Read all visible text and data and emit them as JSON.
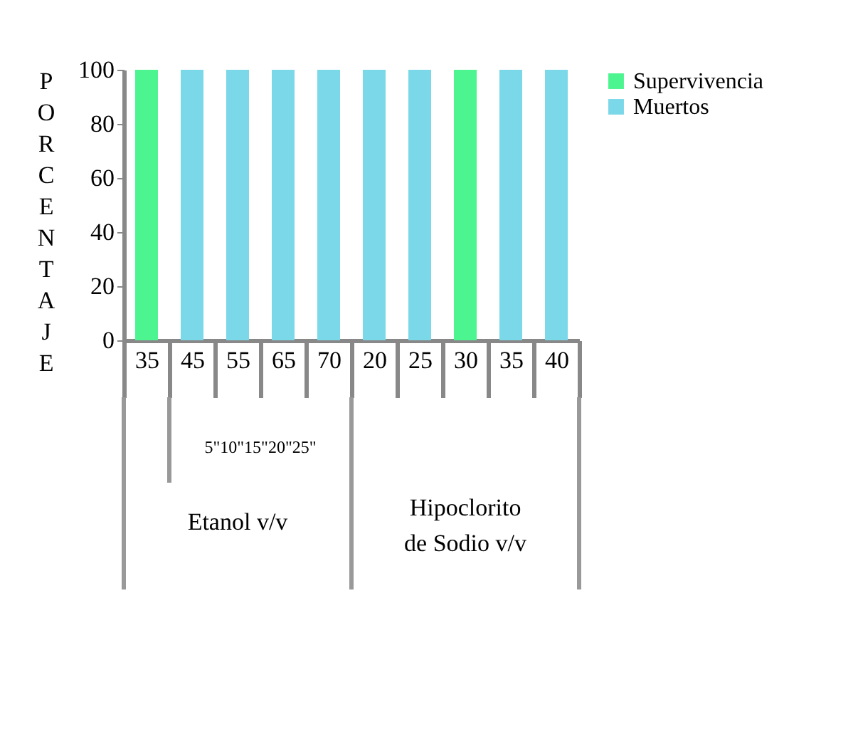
{
  "chart_data": {
    "type": "bar",
    "ylabel": "PORCENTAJE",
    "categories": [
      "35",
      "45",
      "55",
      "65",
      "70",
      "20",
      "25",
      "30",
      "35",
      "40"
    ],
    "series": [
      {
        "name": "Supervivencia",
        "color": "#4cf590",
        "values": [
          100,
          null,
          null,
          null,
          null,
          null,
          null,
          100,
          null,
          null
        ]
      },
      {
        "name": "Muertos",
        "color": "#7ad8e8",
        "values": [
          null,
          100,
          100,
          100,
          100,
          100,
          100,
          null,
          100,
          100
        ]
      }
    ],
    "ylim": [
      0,
      100
    ],
    "yticks": [
      0,
      20,
      40,
      60,
      80,
      100
    ],
    "grid": false,
    "legend": "right",
    "annotations": [
      "5\"10\"15\"20\"25\"",
      "Etanol v/v",
      "Hipoclorito de Sodio  v/v"
    ]
  }
}
